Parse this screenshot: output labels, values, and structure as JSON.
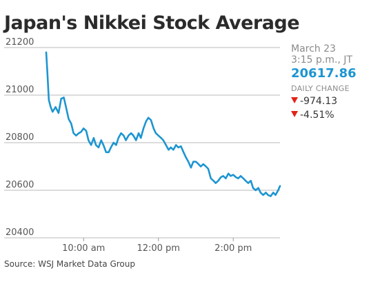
{
  "title": "Japan's Nikkei Stock Average",
  "panel": {
    "date": "March 23",
    "time": "3:15 p.m., JT",
    "value": "20617.86",
    "change_label": "DAILY CHANGE",
    "change_points": "-974.13",
    "change_percent": "-4.51%"
  },
  "source": "Source: WSJ Market Data Group",
  "colors": {
    "line": "#1d95d1",
    "value": "#1d95d1",
    "down": "#e2231a",
    "grid": "#b8b8b8"
  },
  "chart_data": {
    "type": "line",
    "title": "Japan's Nikkei Stock Average",
    "xlabel": "",
    "ylabel": "",
    "y_ticks": [
      21200,
      21000,
      20800,
      20600,
      20400
    ],
    "y_tick_labels": [
      "21200",
      "21000",
      "20800",
      "20600",
      "20400"
    ],
    "x_ticks": [
      "10:00 am",
      "12:00 pm",
      "2:00 pm"
    ],
    "x_tick_hours": [
      10,
      12,
      14
    ],
    "xlim": [
      9.0,
      15.25
    ],
    "ylim": [
      20400,
      21200
    ],
    "grid": "horizontal",
    "series": [
      {
        "x": [
          9.0,
          9.03,
          9.07,
          9.12,
          9.17,
          9.25,
          9.33,
          9.4,
          9.47,
          9.53,
          9.6,
          9.67,
          9.73,
          9.8,
          9.87,
          9.93,
          10.0,
          10.07,
          10.13,
          10.2,
          10.27,
          10.33,
          10.4,
          10.47,
          10.53,
          10.6,
          10.67,
          10.73,
          10.8,
          10.87,
          10.93,
          11.0,
          11.07,
          11.13,
          11.2,
          11.27,
          11.33,
          11.4,
          11.47,
          11.53,
          11.6,
          11.67,
          11.73,
          11.8,
          11.87,
          11.93,
          12.0,
          12.07,
          12.13,
          12.2,
          12.27,
          12.33,
          12.4,
          12.47,
          12.53,
          12.6,
          12.67,
          12.73,
          12.8,
          12.87,
          12.93,
          13.0,
          13.07,
          13.13,
          13.2,
          13.27,
          13.33,
          13.4,
          13.47,
          13.53,
          13.6,
          13.67,
          13.73,
          13.8,
          13.87,
          13.93,
          14.0,
          14.07,
          14.13,
          14.2,
          14.27,
          14.33,
          14.4,
          14.47,
          14.53,
          14.6,
          14.67,
          14.73,
          14.8,
          14.87,
          14.93,
          15.0,
          15.07,
          15.13,
          15.2,
          15.25
        ],
        "y": [
          21180,
          21100,
          20980,
          20950,
          20930,
          20950,
          20925,
          20985,
          20990,
          20950,
          20900,
          20880,
          20840,
          20830,
          20840,
          20845,
          20860,
          20850,
          20810,
          20790,
          20820,
          20790,
          20780,
          20810,
          20790,
          20760,
          20760,
          20780,
          20800,
          20790,
          20820,
          20840,
          20830,
          20810,
          20830,
          20840,
          20830,
          20810,
          20840,
          20820,
          20860,
          20890,
          20905,
          20895,
          20860,
          20840,
          20830,
          20820,
          20810,
          20790,
          20770,
          20780,
          20770,
          20790,
          20780,
          20785,
          20760,
          20740,
          20720,
          20695,
          20720,
          20720,
          20710,
          20700,
          20710,
          20700,
          20690,
          20650,
          20640,
          20630,
          20640,
          20655,
          20660,
          20650,
          20670,
          20660,
          20665,
          20655,
          20650,
          20660,
          20650,
          20640,
          20630,
          20640,
          20610,
          20600,
          20610,
          20590,
          20580,
          20590,
          20580,
          20575,
          20590,
          20580,
          20600,
          20617.86
        ]
      }
    ]
  }
}
